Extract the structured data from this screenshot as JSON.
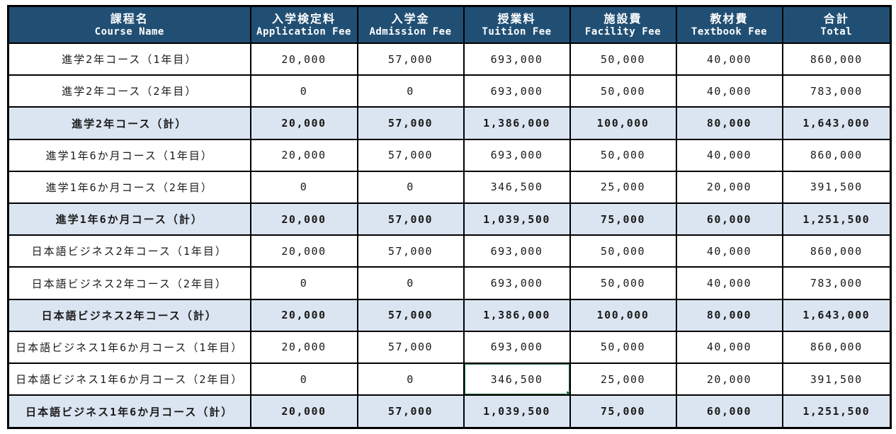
{
  "colors": {
    "header_bg": "#214F74",
    "header_text": "#FFFFFF",
    "subtotal_bg": "#DBE5F1",
    "grid_border": "#000000",
    "selection_green": "#217346"
  },
  "table": {
    "fields": [
      "course",
      "application_fee",
      "admission_fee",
      "tuition_fee",
      "facility_fee",
      "textbook_fee",
      "total"
    ],
    "columns": [
      {
        "key": "course",
        "ja": "課程名",
        "en": "Course Name"
      },
      {
        "key": "application_fee",
        "ja": "入学検定料",
        "en": "Application Fee"
      },
      {
        "key": "admission_fee",
        "ja": "入学金",
        "en": "Admission Fee"
      },
      {
        "key": "tuition_fee",
        "ja": "授業料",
        "en": "Tuition Fee"
      },
      {
        "key": "facility_fee",
        "ja": "施設費",
        "en": "Facility Fee"
      },
      {
        "key": "textbook_fee",
        "ja": "教材費",
        "en": "Textbook Fee"
      },
      {
        "key": "total",
        "ja": "合計",
        "en": "Total"
      }
    ],
    "rows": [
      {
        "course": "進学2年コース（1年目）",
        "application_fee": "20,000",
        "admission_fee": "57,000",
        "tuition_fee": "693,000",
        "facility_fee": "50,000",
        "textbook_fee": "40,000",
        "total": "860,000",
        "subtotal": false
      },
      {
        "course": "進学2年コース（2年目）",
        "application_fee": "0",
        "admission_fee": "0",
        "tuition_fee": "693,000",
        "facility_fee": "50,000",
        "textbook_fee": "40,000",
        "total": "783,000",
        "subtotal": false
      },
      {
        "course": "進学2年コース（計）",
        "application_fee": "20,000",
        "admission_fee": "57,000",
        "tuition_fee": "1,386,000",
        "facility_fee": "100,000",
        "textbook_fee": "80,000",
        "total": "1,643,000",
        "subtotal": true
      },
      {
        "course": "進学1年6か月コース（1年目）",
        "application_fee": "20,000",
        "admission_fee": "57,000",
        "tuition_fee": "693,000",
        "facility_fee": "50,000",
        "textbook_fee": "40,000",
        "total": "860,000",
        "subtotal": false
      },
      {
        "course": "進学1年6か月コース（2年目）",
        "application_fee": "0",
        "admission_fee": "0",
        "tuition_fee": "346,500",
        "facility_fee": "25,000",
        "textbook_fee": "20,000",
        "total": "391,500",
        "subtotal": false
      },
      {
        "course": "進学1年6か月コース（計）",
        "application_fee": "20,000",
        "admission_fee": "57,000",
        "tuition_fee": "1,039,500",
        "facility_fee": "75,000",
        "textbook_fee": "60,000",
        "total": "1,251,500",
        "subtotal": true
      },
      {
        "course": "日本語ビジネス2年コース（1年目）",
        "application_fee": "20,000",
        "admission_fee": "57,000",
        "tuition_fee": "693,000",
        "facility_fee": "50,000",
        "textbook_fee": "40,000",
        "total": "860,000",
        "subtotal": false
      },
      {
        "course": "日本語ビジネス2年コース（2年目）",
        "application_fee": "0",
        "admission_fee": "0",
        "tuition_fee": "693,000",
        "facility_fee": "50,000",
        "textbook_fee": "40,000",
        "total": "783,000",
        "subtotal": false
      },
      {
        "course": "日本語ビジネス2年コース（計）",
        "application_fee": "20,000",
        "admission_fee": "57,000",
        "tuition_fee": "1,386,000",
        "facility_fee": "100,000",
        "textbook_fee": "80,000",
        "total": "1,643,000",
        "subtotal": true
      },
      {
        "course": "日本語ビジネス1年6か月コース（1年目）",
        "application_fee": "20,000",
        "admission_fee": "57,000",
        "tuition_fee": "693,000",
        "facility_fee": "50,000",
        "textbook_fee": "40,000",
        "total": "860,000",
        "subtotal": false
      },
      {
        "course": "日本語ビジネス1年6か月コース（2年目）",
        "application_fee": "0",
        "admission_fee": "0",
        "tuition_fee": "346,500",
        "facility_fee": "25,000",
        "textbook_fee": "20,000",
        "total": "391,500",
        "subtotal": false
      },
      {
        "course": "日本語ビジネス1年6か月コース（計）",
        "application_fee": "20,000",
        "admission_fee": "57,000",
        "tuition_fee": "1,039,500",
        "facility_fee": "75,000",
        "textbook_fee": "60,000",
        "total": "1,251,500",
        "subtotal": true
      }
    ]
  },
  "selection": {
    "row_index": 10,
    "field": "tuition_fee",
    "value": "346,500"
  }
}
